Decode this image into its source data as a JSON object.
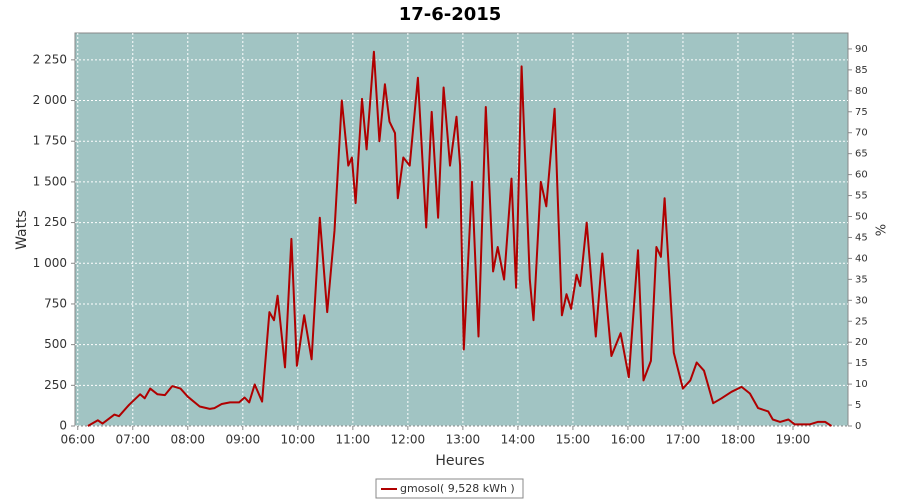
{
  "chart_data": {
    "type": "line",
    "title": "17-6-2015",
    "x_label": "Heures",
    "y_label": "Watts",
    "y2_label": "%",
    "x": [
      "06:11",
      "06:22",
      "06:27",
      "06:40",
      "06:45",
      "06:56",
      "07:08",
      "07:13",
      "07:19",
      "07:27",
      "07:35",
      "07:43",
      "07:52",
      "08:00",
      "08:13",
      "08:24",
      "08:29",
      "08:37",
      "08:46",
      "08:56",
      "09:02",
      "09:07",
      "09:13",
      "09:21",
      "09:29",
      "09:34",
      "09:38",
      "09:46",
      "09:53",
      "09:59",
      "10:07",
      "10:15",
      "10:24",
      "10:32",
      "10:40",
      "10:48",
      "10:55",
      "10:59",
      "11:03",
      "11:10",
      "11:15",
      "11:23",
      "11:29",
      "11:35",
      "11:40",
      "11:46",
      "11:49",
      "11:55",
      "12:02",
      "12:11",
      "12:20",
      "12:26",
      "12:33",
      "12:39",
      "12:46",
      "12:53",
      "12:57",
      "13:01",
      "13:10",
      "13:17",
      "13:25",
      "13:33",
      "13:38",
      "13:45",
      "13:53",
      "13:58",
      "14:04",
      "14:13",
      "14:17",
      "14:25",
      "14:31",
      "14:40",
      "14:48",
      "14:53",
      "14:58",
      "15:04",
      "15:08",
      "15:15",
      "15:25",
      "15:32",
      "15:42",
      "15:52",
      "16:01",
      "16:11",
      "16:17",
      "16:25",
      "16:31",
      "16:36",
      "16:40",
      "16:50",
      "17:00",
      "17:08",
      "17:15",
      "17:23",
      "17:33",
      "17:42",
      "17:53",
      "18:04",
      "18:13",
      "18:22",
      "18:33",
      "18:38",
      "18:46",
      "18:55",
      "19:02",
      "19:18",
      "19:27",
      "19:35",
      "19:42"
    ],
    "series": [
      {
        "name": "gmosol( 9,528 kWh )",
        "color": "#b00000",
        "values": [
          0,
          35,
          15,
          70,
          60,
          130,
          195,
          170,
          230,
          195,
          190,
          245,
          230,
          180,
          120,
          105,
          110,
          135,
          145,
          145,
          175,
          145,
          255,
          150,
          700,
          650,
          800,
          360,
          1150,
          370,
          680,
          410,
          1280,
          700,
          1200,
          2000,
          1600,
          1650,
          1370,
          2010,
          1700,
          2300,
          1750,
          2100,
          1870,
          1800,
          1400,
          1650,
          1600,
          2140,
          1220,
          1930,
          1280,
          2080,
          1600,
          1900,
          1600,
          470,
          1500,
          550,
          1960,
          950,
          1100,
          900,
          1520,
          850,
          2210,
          900,
          650,
          1500,
          1350,
          1950,
          680,
          810,
          720,
          930,
          860,
          1250,
          550,
          1060,
          430,
          570,
          300,
          1080,
          280,
          400,
          1100,
          1040,
          1400,
          450,
          230,
          280,
          390,
          340,
          140,
          170,
          210,
          240,
          200,
          110,
          90,
          40,
          25,
          40,
          10,
          10,
          25,
          25,
          0
        ]
      }
    ],
    "xlim": [
      "05:57",
      "20:00"
    ],
    "xticks": [
      "06:00",
      "07:00",
      "08:00",
      "09:00",
      "10:00",
      "11:00",
      "12:00",
      "13:00",
      "14:00",
      "15:00",
      "16:00",
      "17:00",
      "18:00",
      "19:00"
    ],
    "ylim": [
      0,
      2415
    ],
    "yticks": [
      0,
      250,
      500,
      750,
      {
        "value": 1000,
        "label": "1 000"
      },
      {
        "value": 1250,
        "label": "1 250"
      },
      {
        "value": 1500,
        "label": "1 500"
      },
      {
        "value": 1750,
        "label": "1 750"
      },
      {
        "value": 2000,
        "label": "2 000"
      },
      {
        "value": 2250,
        "label": "2 250"
      }
    ],
    "y2lim": [
      0,
      93.8
    ],
    "y2ticks": [
      0,
      5,
      10,
      15,
      20,
      25,
      30,
      35,
      40,
      45,
      50,
      55,
      60,
      65,
      70,
      75,
      80,
      85,
      90
    ],
    "grid": true
  }
}
